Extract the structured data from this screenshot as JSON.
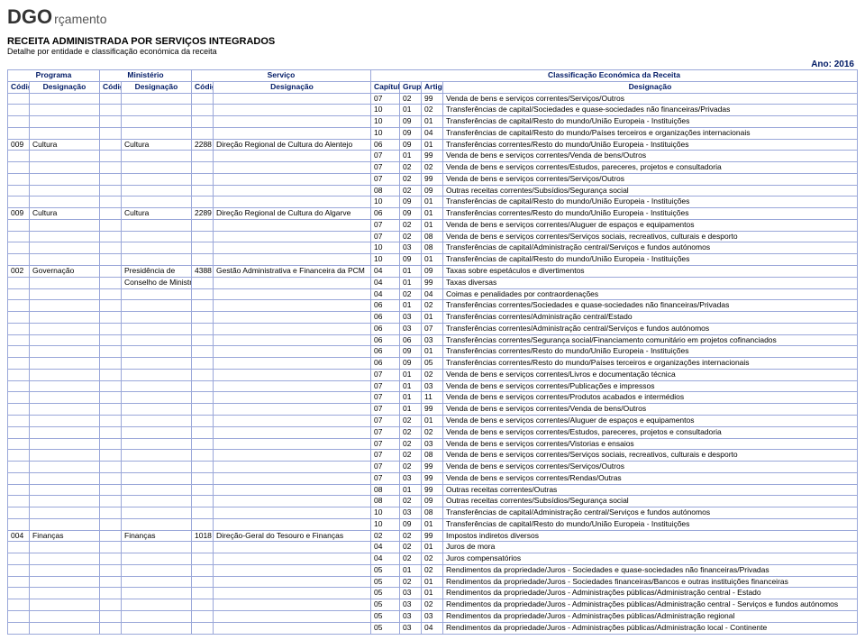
{
  "logo": {
    "main": "DGO",
    "sub": "rçamento"
  },
  "title": "RECEITA ADMINISTRADA POR SERVIÇOS INTEGRADOS",
  "subtitle": "Detalhe por entidade e classificação económica da receita",
  "ano_label": "Ano: 2016",
  "group_headers": {
    "programa": "Programa",
    "ministerio": "Ministério",
    "servico": "Serviço",
    "class_econ": "Classificação Económica da Receita"
  },
  "col_headers": {
    "codigo": "Código",
    "designacao": "Designação",
    "capitulo": "Capítulo",
    "grupo": "Grupo",
    "artigo": "Artigo"
  },
  "rows": [
    {
      "cap": "07",
      "grp": "02",
      "art": "99",
      "acc": "Venda de bens e serviços correntes/Serviços/Outros"
    },
    {
      "cap": "10",
      "grp": "01",
      "art": "02",
      "acc": "Transferências de capital/Sociedades e quase-sociedades não financeiras/Privadas"
    },
    {
      "cap": "10",
      "grp": "09",
      "art": "01",
      "acc": "Transferências de capital/Resto do mundo/União Europeia - Instituições"
    },
    {
      "cap": "10",
      "grp": "09",
      "art": "04",
      "acc": "Transferências de capital/Resto do mundo/Países terceiros e organizações internacionais"
    },
    {
      "c1": "009",
      "d1": "Cultura",
      "d2": "Cultura",
      "c3": "2288",
      "d3": "Direção Regional de Cultura do Alentejo",
      "cap": "06",
      "grp": "09",
      "art": "01",
      "acc": "Transferências correntes/Resto do mundo/União Europeia - Instituições"
    },
    {
      "cap": "07",
      "grp": "01",
      "art": "99",
      "acc": "Venda de bens e serviços correntes/Venda de bens/Outros"
    },
    {
      "cap": "07",
      "grp": "02",
      "art": "02",
      "acc": "Venda de bens e serviços correntes/Estudos, pareceres, projetos e consultadoria"
    },
    {
      "cap": "07",
      "grp": "02",
      "art": "99",
      "acc": "Venda de bens e serviços correntes/Serviços/Outros"
    },
    {
      "cap": "08",
      "grp": "02",
      "art": "09",
      "acc": "Outras receitas correntes/Subsídios/Segurança social"
    },
    {
      "cap": "10",
      "grp": "09",
      "art": "01",
      "acc": "Transferências de capital/Resto do mundo/União Europeia - Instituições"
    },
    {
      "c1": "009",
      "d1": "Cultura",
      "d2": "Cultura",
      "c3": "2289",
      "d3": "Direção Regional de Cultura do Algarve",
      "cap": "06",
      "grp": "09",
      "art": "01",
      "acc": "Transferências correntes/Resto do mundo/União Europeia - Instituições"
    },
    {
      "cap": "07",
      "grp": "02",
      "art": "01",
      "acc": "Venda de bens e serviços correntes/Aluguer de espaços e equipamentos"
    },
    {
      "cap": "07",
      "grp": "02",
      "art": "08",
      "acc": "Venda de bens e serviços correntes/Serviços sociais, recreativos, culturais e desporto"
    },
    {
      "cap": "10",
      "grp": "03",
      "art": "08",
      "acc": "Transferências de capital/Administração central/Serviços e fundos autónomos"
    },
    {
      "cap": "10",
      "grp": "09",
      "art": "01",
      "acc": "Transferências de capital/Resto do mundo/União Europeia - Instituições"
    },
    {
      "c1": "002",
      "d1": "Governação",
      "d2": "Presidência de",
      "c3": "4388",
      "d3": "Gestão Administrativa e Financeira da PCM",
      "cap": "04",
      "grp": "01",
      "art": "09",
      "acc": "Taxas sobre espetáculos e divertimentos"
    },
    {
      "d2": "Conselho de Ministros",
      "cap": "04",
      "grp": "01",
      "art": "99",
      "acc": "Taxas diversas"
    },
    {
      "cap": "04",
      "grp": "02",
      "art": "04",
      "acc": "Coimas e penalidades por contraordenações"
    },
    {
      "cap": "06",
      "grp": "01",
      "art": "02",
      "acc": "Transferências correntes/Sociedades e quase-sociedades não financeiras/Privadas"
    },
    {
      "cap": "06",
      "grp": "03",
      "art": "01",
      "acc": "Transferências correntes/Administração central/Estado"
    },
    {
      "cap": "06",
      "grp": "03",
      "art": "07",
      "acc": "Transferências correntes/Administração central/Serviços e fundos autónomos"
    },
    {
      "cap": "06",
      "grp": "06",
      "art": "03",
      "acc": "Transferências correntes/Segurança social/Financiamento comunitário em projetos cofinanciados"
    },
    {
      "cap": "06",
      "grp": "09",
      "art": "01",
      "acc": "Transferências correntes/Resto do mundo/União Europeia - Instituições"
    },
    {
      "cap": "06",
      "grp": "09",
      "art": "05",
      "acc": "Transferências correntes/Resto do mundo/Países terceiros e organizações internacionais"
    },
    {
      "cap": "07",
      "grp": "01",
      "art": "02",
      "acc": "Venda de bens e serviços correntes/Livros e documentação técnica"
    },
    {
      "cap": "07",
      "grp": "01",
      "art": "03",
      "acc": "Venda de bens e serviços correntes/Publicações e impressos"
    },
    {
      "cap": "07",
      "grp": "01",
      "art": "11",
      "acc": "Venda de bens e serviços correntes/Produtos acabados e intermédios"
    },
    {
      "cap": "07",
      "grp": "01",
      "art": "99",
      "acc": "Venda de bens e serviços correntes/Venda de bens/Outros"
    },
    {
      "cap": "07",
      "grp": "02",
      "art": "01",
      "acc": "Venda de bens e serviços correntes/Aluguer de espaços e equipamentos"
    },
    {
      "cap": "07",
      "grp": "02",
      "art": "02",
      "acc": "Venda de bens e serviços correntes/Estudos, pareceres, projetos e consultadoria"
    },
    {
      "cap": "07",
      "grp": "02",
      "art": "03",
      "acc": "Venda de bens e serviços correntes/Vistorias e ensaios"
    },
    {
      "cap": "07",
      "grp": "02",
      "art": "08",
      "acc": "Venda de bens e serviços correntes/Serviços sociais, recreativos, culturais e desporto"
    },
    {
      "cap": "07",
      "grp": "02",
      "art": "99",
      "acc": "Venda de bens e serviços correntes/Serviços/Outros"
    },
    {
      "cap": "07",
      "grp": "03",
      "art": "99",
      "acc": "Venda de bens e serviços correntes/Rendas/Outras"
    },
    {
      "cap": "08",
      "grp": "01",
      "art": "99",
      "acc": "Outras receitas correntes/Outras"
    },
    {
      "cap": "08",
      "grp": "02",
      "art": "09",
      "acc": "Outras receitas correntes/Subsídios/Segurança social"
    },
    {
      "cap": "10",
      "grp": "03",
      "art": "08",
      "acc": "Transferências de capital/Administração central/Serviços e fundos autónomos"
    },
    {
      "cap": "10",
      "grp": "09",
      "art": "01",
      "acc": "Transferências de capital/Resto do mundo/União Europeia - Instituições"
    },
    {
      "c1": "004",
      "d1": "Finanças",
      "d2": "Finanças",
      "c3": "1018",
      "d3": "Direção-Geral do Tesouro e Finanças",
      "cap": "02",
      "grp": "02",
      "art": "99",
      "acc": "Impostos indiretos diversos"
    },
    {
      "cap": "04",
      "grp": "02",
      "art": "01",
      "acc": "Juros de mora"
    },
    {
      "cap": "04",
      "grp": "02",
      "art": "02",
      "acc": "Juros compensatórios"
    },
    {
      "cap": "05",
      "grp": "01",
      "art": "02",
      "acc": "Rendimentos da propriedade/Juros - Sociedades e quase-sociedades não financeiras/Privadas"
    },
    {
      "cap": "05",
      "grp": "02",
      "art": "01",
      "acc": "Rendimentos da propriedade/Juros - Sociedades financeiras/Bancos e outras instituições financeiras"
    },
    {
      "cap": "05",
      "grp": "03",
      "art": "01",
      "acc": "Rendimentos da propriedade/Juros - Administrações públicas/Administração central - Estado"
    },
    {
      "cap": "05",
      "grp": "03",
      "art": "02",
      "acc": "Rendimentos da propriedade/Juros - Administrações públicas/Administração central - Serviços e fundos autónomos"
    },
    {
      "cap": "05",
      "grp": "03",
      "art": "03",
      "acc": "Rendimentos da propriedade/Juros - Administrações públicas/Administração regional"
    },
    {
      "cap": "05",
      "grp": "03",
      "art": "04",
      "acc": "Rendimentos da propriedade/Juros - Administrações públicas/Administração local - Continente"
    }
  ]
}
